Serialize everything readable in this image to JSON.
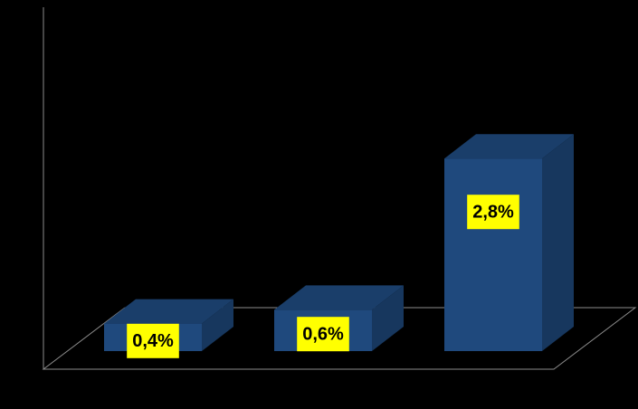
{
  "chart_data": {
    "type": "bar3d",
    "categories": [
      null,
      null,
      null
    ],
    "values": [
      0.4,
      0.6,
      2.8
    ],
    "value_labels": [
      "0,4%",
      "0,6%",
      "2,8%"
    ],
    "color": "#1f497d",
    "label_background": "#ffff00",
    "ylim": [
      0,
      5
    ]
  }
}
